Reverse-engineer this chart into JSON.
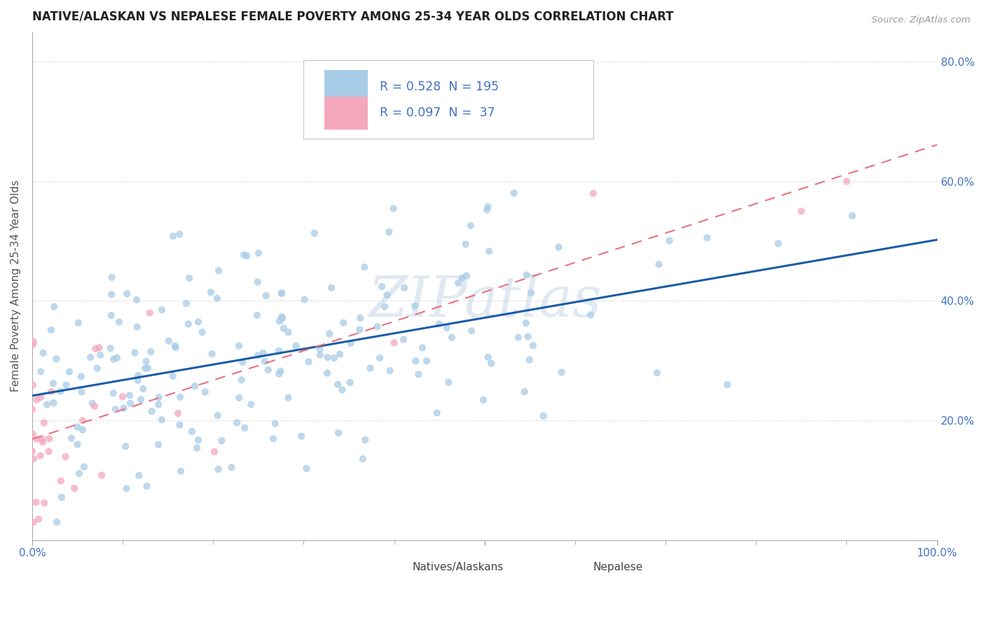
{
  "title": "NATIVE/ALASKAN VS NEPALESE FEMALE POVERTY AMONG 25-34 YEAR OLDS CORRELATION CHART",
  "source": "Source: ZipAtlas.com",
  "ylabel": "Female Poverty Among 25-34 Year Olds",
  "xlim": [
    0,
    1
  ],
  "ylim": [
    0,
    0.85
  ],
  "ytick_positions": [
    0.2,
    0.4,
    0.6,
    0.8
  ],
  "ytick_labels": [
    "20.0%",
    "40.0%",
    "60.0%",
    "80.0%"
  ],
  "blue_color": "#a8cce8",
  "pink_color": "#f4a8bc",
  "trend_blue": "#1a5ca8",
  "trend_pink": "#e87080",
  "watermark": "ZIPatlas",
  "legend_R_blue": "0.528",
  "legend_N_blue": "195",
  "legend_R_pink": "0.097",
  "legend_N_pink": "37",
  "label_color": "#4472c4",
  "native_label": "Natives/Alaskans",
  "nepalese_label": "Nepalese"
}
